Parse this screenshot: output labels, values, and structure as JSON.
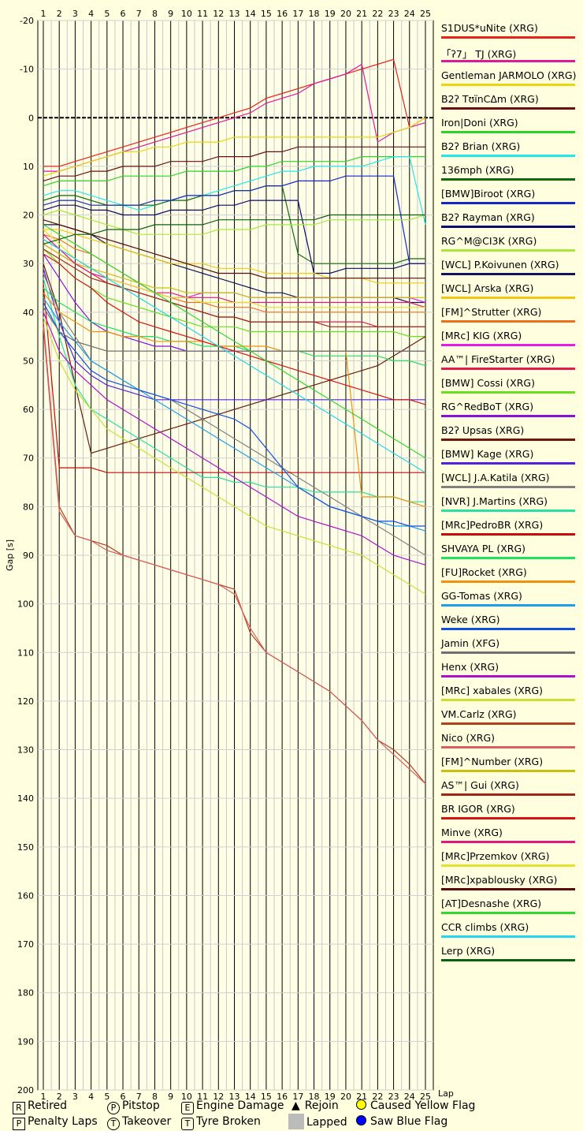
{
  "chart_data": {
    "type": "line",
    "title": "",
    "xlabel": "Lap",
    "ylabel": "Gap [s]",
    "xlim": [
      1,
      25
    ],
    "ylim": [
      -20,
      200
    ],
    "x_ticks": [
      "1",
      "2",
      "3",
      "4",
      "5",
      "6",
      "7",
      "8",
      "9",
      "10",
      "11",
      "12",
      "13",
      "14",
      "15",
      "16",
      "17",
      "18",
      "19",
      "20",
      "21",
      "22",
      "23",
      "24",
      "25"
    ],
    "y_ticks": [
      "-20",
      "-10",
      "0",
      "10",
      "20",
      "30",
      "40",
      "50",
      "60",
      "70",
      "80",
      "90",
      "100",
      "110",
      "120",
      "130",
      "140",
      "150",
      "160",
      "170",
      "180",
      "190",
      "200"
    ],
    "series": [
      {
        "name": "S1DUS*uNite (XRG)",
        "color": "#e8231b",
        "values": [
          10,
          10,
          9,
          8,
          7,
          6,
          5,
          4,
          3,
          2,
          1,
          0,
          -1,
          -2,
          -4,
          -5,
          -6,
          -7,
          -8,
          -9,
          -10,
          -11,
          -12,
          2,
          0
        ]
      },
      {
        "name": "「ʔ7」 TJ (XRG)",
        "color": "#e0189a",
        "values": [
          11,
          11,
          10,
          9,
          8,
          7,
          6,
          5,
          4,
          3,
          2,
          1,
          0,
          -1,
          -3,
          -4,
          -5,
          -7,
          -8,
          -9,
          -11,
          5,
          3,
          2,
          1
        ]
      },
      {
        "name": "Gentleman JARMOLO (XRG)",
        "color": "#e8d70e",
        "values": [
          12,
          11,
          10,
          9,
          8,
          7,
          7,
          6,
          6,
          5,
          5,
          5,
          4,
          4,
          4,
          4,
          4,
          4,
          4,
          4,
          4,
          4,
          3,
          2,
          0
        ]
      },
      {
        "name": "B2ʔ TʊïnCΔm (XRG)",
        "color": "#6b1010",
        "values": [
          13,
          12,
          12,
          11,
          11,
          10,
          10,
          10,
          9,
          9,
          9,
          8,
          8,
          8,
          7,
          7,
          6,
          6,
          6,
          6,
          6,
          6,
          6,
          6,
          6
        ]
      },
      {
        "name": "Iron|Doni (XRG)",
        "color": "#2ad42a",
        "values": [
          14,
          13,
          13,
          13,
          13,
          12,
          12,
          12,
          12,
          11,
          11,
          11,
          11,
          10,
          10,
          9,
          9,
          9,
          9,
          9,
          8,
          8,
          8,
          8,
          8
        ]
      },
      {
        "name": "B2ʔ Brian (XRG)",
        "color": "#20e8e8",
        "values": [
          16,
          15,
          15,
          16,
          17,
          18,
          19,
          18,
          17,
          16,
          16,
          15,
          14,
          13,
          12,
          11,
          11,
          10,
          10,
          10,
          10,
          9,
          8,
          8,
          22
        ]
      },
      {
        "name": "136mph (XRG)",
        "color": "#0e6b0e",
        "values": [
          17,
          16,
          16,
          17,
          18,
          18,
          18,
          18,
          17,
          17,
          16,
          16,
          15,
          15,
          14,
          14,
          28,
          30,
          30,
          30,
          30,
          30,
          30,
          29,
          29
        ]
      },
      {
        "name": "[BMW]Biroot (XRG)",
        "color": "#1428c8",
        "values": [
          18,
          17,
          17,
          18,
          18,
          18,
          18,
          17,
          17,
          16,
          16,
          16,
          15,
          15,
          14,
          14,
          13,
          13,
          13,
          12,
          12,
          12,
          12,
          30,
          30
        ]
      },
      {
        "name": "B2ʔ Rayman (XRG)",
        "color": "#0a0a6b",
        "values": [
          19,
          18,
          18,
          19,
          19,
          20,
          20,
          20,
          19,
          19,
          19,
          18,
          18,
          17,
          17,
          17,
          17,
          32,
          32,
          31,
          31,
          31,
          31,
          30,
          30
        ]
      },
      {
        "name": "RG^M@CI3K (XRG)",
        "color": "#a8e83c",
        "values": [
          20,
          19,
          20,
          21,
          22,
          23,
          24,
          24,
          24,
          24,
          24,
          23,
          23,
          23,
          22,
          22,
          22,
          22,
          21,
          21,
          21,
          21,
          21,
          21,
          20
        ]
      },
      {
        "name": "[WCL] P.Koivunen (XRG)",
        "color": "#14145a",
        "values": [
          22,
          22,
          23,
          24,
          26,
          27,
          28,
          29,
          30,
          31,
          32,
          33,
          34,
          35,
          36,
          36,
          37,
          37,
          37,
          37,
          37,
          37,
          37,
          38,
          38
        ]
      },
      {
        "name": "[WCL] Arska (XRG)",
        "color": "#f0c814",
        "values": [
          23,
          23,
          24,
          25,
          26,
          27,
          28,
          29,
          30,
          30,
          30,
          31,
          31,
          31,
          32,
          32,
          32,
          32,
          33,
          33,
          33,
          34,
          34,
          34,
          34
        ]
      },
      {
        "name": "[FM]^Strutter (XRG)",
        "color": "#f07020",
        "values": [
          24,
          25,
          27,
          28,
          30,
          32,
          34,
          36,
          37,
          38,
          38,
          39,
          39,
          39,
          40,
          40,
          40,
          40,
          40,
          40,
          40,
          40,
          40,
          40,
          40
        ]
      },
      {
        "name": "[MRc] KIG (XRG)",
        "color": "#e020e0",
        "values": [
          25,
          27,
          29,
          31,
          33,
          34,
          35,
          36,
          37,
          37,
          36,
          36,
          36,
          37,
          37,
          37,
          37,
          37,
          37,
          37,
          37,
          37,
          37,
          37,
          38
        ]
      },
      {
        "name": "AA™| FireStarter (XRG)",
        "color": "#e81850",
        "values": [
          26,
          28,
          30,
          32,
          34,
          35,
          36,
          37,
          38,
          39,
          40,
          41,
          41,
          42,
          42,
          42,
          42,
          42,
          42,
          42,
          42,
          43,
          43,
          43,
          43
        ]
      },
      {
        "name": "[BMW] Cossi (XRG)",
        "color": "#68e020",
        "values": [
          27,
          30,
          33,
          35,
          37,
          38,
          39,
          40,
          41,
          42,
          43,
          43,
          43,
          44,
          44,
          44,
          44,
          44,
          44,
          44,
          44,
          44,
          44,
          45,
          45
        ]
      },
      {
        "name": "RG^RedBoT (XRG)",
        "color": "#8a10d8",
        "values": [
          28,
          33,
          38,
          42,
          44,
          45,
          46,
          47,
          47,
          48,
          48,
          48,
          48,
          48,
          48,
          48,
          48,
          48,
          48,
          48,
          48,
          48,
          48,
          48,
          48
        ]
      },
      {
        "name": "B2ʔ Upsas (XRG)",
        "color": "#6b1a0a",
        "values": [
          30,
          40,
          55,
          69,
          68,
          67,
          66,
          65,
          64,
          63,
          62,
          61,
          60,
          59,
          58,
          57,
          56,
          55,
          54,
          53,
          52,
          51,
          49,
          47,
          45
        ]
      },
      {
        "name": "[BMW] Kage (XRG)",
        "color": "#5a20e0",
        "values": [
          31,
          42,
          50,
          53,
          55,
          56,
          57,
          58,
          58,
          58,
          58,
          58,
          58,
          58,
          58,
          58,
          58,
          58,
          58,
          58,
          58,
          58,
          58,
          58,
          58
        ]
      },
      {
        "name": "[WCL] J.A.Katila (XRG)",
        "color": "#808080",
        "values": [
          32,
          40,
          45,
          50,
          52,
          54,
          56,
          57,
          58,
          60,
          62,
          64,
          66,
          68,
          70,
          72,
          74,
          76,
          78,
          80,
          82,
          84,
          86,
          88,
          90
        ]
      },
      {
        "name": "[NVR] J.Martins (XRG)",
        "color": "#28e0a0",
        "values": [
          33,
          45,
          55,
          60,
          62,
          64,
          66,
          68,
          70,
          72,
          74,
          74,
          75,
          75,
          76,
          76,
          76,
          77,
          77,
          77,
          77,
          78,
          78,
          79,
          79
        ]
      },
      {
        "name": "[MRc]PedroBR (XRG)",
        "color": "#c80a0a",
        "values": [
          34,
          72,
          72,
          72,
          73,
          73,
          73,
          73,
          73,
          73,
          73,
          73,
          73,
          73,
          73,
          73,
          73,
          73,
          73,
          73,
          73,
          73,
          73,
          73,
          73
        ]
      },
      {
        "name": "SHVAYA PL (XRG)",
        "color": "#20e060",
        "values": [
          35,
          38,
          40,
          42,
          43,
          44,
          45,
          45,
          46,
          46,
          47,
          47,
          47,
          48,
          48,
          48,
          48,
          49,
          49,
          49,
          49,
          49,
          50,
          50,
          51
        ]
      },
      {
        "name": "[FU]Rocket (XRG)",
        "color": "#f09010",
        "values": [
          36,
          40,
          42,
          44,
          44,
          45,
          45,
          46,
          46,
          46,
          46,
          47,
          47,
          47,
          47,
          48,
          48,
          48,
          48,
          48,
          78,
          78,
          78,
          79,
          80
        ]
      },
      {
        "name": "GG-Tomas (XRG)",
        "color": "#1ea0e8",
        "values": [
          37,
          42,
          46,
          50,
          52,
          54,
          56,
          58,
          60,
          62,
          64,
          66,
          68,
          70,
          72,
          74,
          76,
          78,
          80,
          81,
          82,
          83,
          84,
          84,
          85
        ]
      },
      {
        "name": "Weke (XRG)",
        "color": "#1050e0",
        "values": [
          38,
          44,
          48,
          52,
          54,
          55,
          56,
          57,
          58,
          59,
          60,
          61,
          62,
          64,
          68,
          72,
          76,
          78,
          80,
          81,
          82,
          83,
          83,
          84,
          84
        ]
      },
      {
        "name": "Jamin (XFG)",
        "color": "#707070",
        "values": [
          39,
          44,
          46,
          47,
          48,
          48,
          48,
          48,
          48,
          48,
          48,
          48,
          48,
          48,
          48,
          48,
          48,
          48,
          48,
          48,
          48,
          48,
          48,
          48,
          48
        ]
      },
      {
        "name": "Henx (XRG)",
        "color": "#b010c8",
        "values": [
          40,
          48,
          52,
          55,
          58,
          60,
          62,
          64,
          66,
          68,
          70,
          72,
          74,
          76,
          78,
          80,
          82,
          83,
          84,
          85,
          86,
          88,
          90,
          91,
          92
        ]
      },
      {
        "name": "[MRc] xabales (XRG)",
        "color": "#c8e030",
        "values": [
          41,
          50,
          56,
          60,
          64,
          66,
          68,
          70,
          72,
          74,
          76,
          78,
          80,
          82,
          84,
          85,
          86,
          87,
          88,
          89,
          90,
          92,
          94,
          96,
          98
        ]
      },
      {
        "name": "VM.Carlz (XRG)",
        "color": "#b04020",
        "values": [
          42,
          80,
          86,
          87,
          88,
          90,
          91,
          92,
          93,
          94,
          95,
          96,
          97,
          106,
          110,
          112,
          114,
          116,
          118,
          121,
          124,
          128,
          130,
          133,
          137
        ]
      },
      {
        "name": "Nico (XRG)",
        "color": "#d86060",
        "values": [
          43,
          81,
          86,
          87,
          89,
          90,
          91,
          92,
          93,
          94,
          95,
          96,
          98,
          105,
          110,
          112,
          114,
          116,
          118,
          121,
          124,
          128,
          131,
          134,
          137
        ]
      },
      {
        "name": "[FM]^Number (XRG)",
        "color": "#c8c010",
        "values": [
          26,
          28,
          30,
          31,
          32,
          33,
          34,
          35,
          35,
          36,
          36,
          36,
          36,
          37,
          37,
          37,
          37,
          37,
          37,
          37,
          37,
          37,
          37,
          37,
          37
        ]
      },
      {
        "name": "AS™| Gui (XRG)",
        "color": "#a02818",
        "values": [
          27,
          29,
          31,
          33,
          34,
          35,
          36,
          37,
          38,
          39,
          40,
          41,
          41,
          42,
          42,
          42,
          42,
          42,
          43,
          43,
          43,
          43,
          43,
          43,
          43
        ]
      },
      {
        "name": "BR IGOR (XRG)",
        "color": "#d81010",
        "values": [
          28,
          30,
          33,
          35,
          38,
          40,
          42,
          43,
          44,
          45,
          46,
          47,
          48,
          49,
          50,
          51,
          52,
          53,
          54,
          55,
          56,
          57,
          58,
          58,
          59
        ]
      },
      {
        "name": "Minve (XRG)",
        "color": "#e01880",
        "values": [
          24,
          27,
          30,
          32,
          33,
          34,
          35,
          36,
          36,
          37,
          37,
          37,
          38,
          38,
          38,
          38,
          38,
          38,
          38,
          38,
          38,
          38,
          38,
          38,
          39
        ]
      },
      {
        "name": "[MRc]Przemkov (XRG)",
        "color": "#e8e030",
        "values": [
          23,
          26,
          29,
          31,
          33,
          34,
          35,
          36,
          37,
          37,
          38,
          38,
          38,
          38,
          39,
          39,
          39,
          39,
          39,
          39,
          39,
          39,
          39,
          39,
          39
        ]
      },
      {
        "name": "[MRc]xpablousky (XRG)",
        "color": "#5a0a0a",
        "values": [
          21,
          22,
          23,
          24,
          25,
          26,
          27,
          28,
          29,
          30,
          31,
          32,
          32,
          32,
          33,
          33,
          33,
          33,
          33,
          33,
          33,
          33,
          33,
          33,
          33
        ]
      },
      {
        "name": "[AT]Desnashe (XRG)",
        "color": "#30d830",
        "values": [
          22,
          24,
          26,
          28,
          30,
          32,
          34,
          36,
          38,
          40,
          42,
          44,
          46,
          48,
          50,
          52,
          54,
          56,
          58,
          60,
          62,
          64,
          66,
          68,
          70
        ]
      },
      {
        "name": "CCR climbs (XRG)",
        "color": "#20d8e8",
        "values": [
          25,
          27,
          29,
          31,
          33,
          35,
          37,
          39,
          41,
          43,
          45,
          47,
          49,
          51,
          53,
          55,
          57,
          59,
          61,
          63,
          65,
          67,
          69,
          71,
          73
        ]
      },
      {
        "name": "Lerp (XRG)",
        "color": "#0a6010",
        "values": [
          26,
          25,
          24,
          24,
          23,
          23,
          23,
          22,
          22,
          22,
          22,
          21,
          21,
          21,
          21,
          21,
          21,
          21,
          20,
          20,
          20,
          20,
          20,
          20,
          20
        ]
      }
    ]
  },
  "key": {
    "retired": {
      "symbol": "R",
      "label": "Retired"
    },
    "penalty": {
      "symbol": "P",
      "label": "Penalty Laps"
    },
    "pitstop": {
      "symbol": "P",
      "label": "Pitstop"
    },
    "takeover": {
      "symbol": "T",
      "label": "Takeover"
    },
    "engine": {
      "symbol": "E",
      "label": "Engine Damage"
    },
    "tyre": {
      "symbol": "T",
      "label": "Tyre Broken"
    },
    "rejoin": {
      "symbol": "▲",
      "label": "Rejoin"
    },
    "lapped": {
      "label": "Lapped"
    },
    "yellow": {
      "label": "Caused Yellow Flag",
      "color": "#ffff00"
    },
    "blue": {
      "label": "Saw Blue Flag",
      "color": "#0000ff"
    }
  }
}
